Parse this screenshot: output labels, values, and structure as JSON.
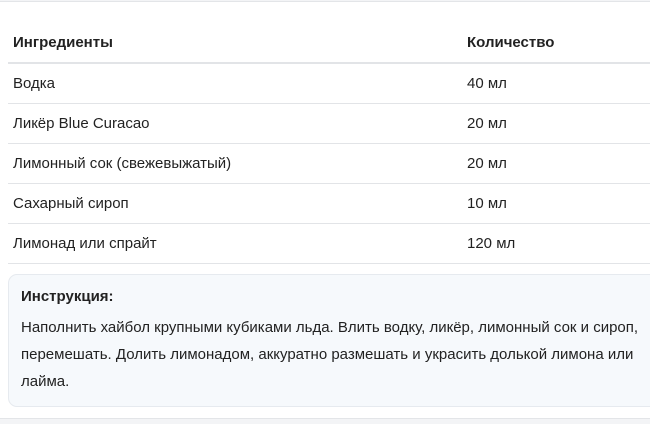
{
  "table": {
    "headers": [
      "Ингредиенты",
      "Количество"
    ],
    "rows": [
      {
        "ingredient": "Водка",
        "amount": "40 мл"
      },
      {
        "ingredient": "Ликёр Blue Curacao",
        "amount": "20 мл"
      },
      {
        "ingredient": "Лимонный сок (свежевыжатый)",
        "amount": "20 мл"
      },
      {
        "ingredient": "Сахарный сироп",
        "amount": "10 мл"
      },
      {
        "ingredient": "Лимонад или спрайт",
        "amount": "120 мл"
      }
    ]
  },
  "instructions": {
    "title": "Инструкция:",
    "text": "Наполнить хайбол крупными кубиками льда. Влить водку, ликёр, лимонный сок и сироп, перемешать. Долить лимонадом, аккуратно размешать и украсить долькой лимона или лайма."
  }
}
